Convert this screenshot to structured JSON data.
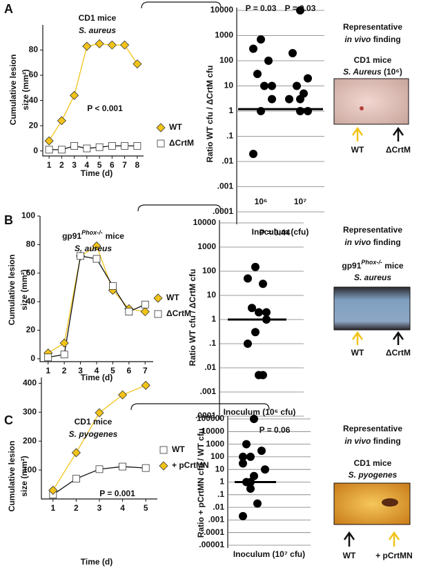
{
  "panels": [
    {
      "letter": "A",
      "caption": [
        "Representative",
        "in vivo",
        "finding"
      ],
      "photo_title": "CD1 mice",
      "photo_subtitle": "S. Aureus",
      "photo_subtitle_end": "(10⁶)",
      "arrow_labels": [
        "WT",
        "ΔCrtM"
      ]
    },
    {
      "letter": "B",
      "caption": [
        "Representative",
        "in vivo",
        "finding"
      ],
      "photo_title": "gp91",
      "photo_title_sup": "Phox-/-",
      "photo_title_end": "mice",
      "photo_subtitle": "S. aureus",
      "arrow_labels": [
        "WT",
        "ΔCrtM"
      ]
    },
    {
      "letter": "C",
      "caption": [
        "Representative",
        "in vivo",
        "finding"
      ],
      "photo_title": "CD1 mice",
      "photo_subtitle": "S. pyogenes",
      "arrow_labels": [
        "WT",
        "+ pCrtMN"
      ]
    }
  ],
  "chart_data": [
    {
      "type": "line",
      "title": "CD1 mice",
      "subtitle": "S. aureus",
      "ylabel": [
        "Cumulative lesion",
        "size (mm²)"
      ],
      "xlabel": "Time (d)",
      "annotation": "P < 0.001",
      "x": [
        1,
        2,
        3,
        4,
        5,
        6,
        7,
        8
      ],
      "xlim": [
        0.5,
        8.5
      ],
      "xticks": [
        1,
        2,
        3,
        4,
        5,
        6,
        7,
        8
      ],
      "ylim": [
        -4,
        100
      ],
      "yticks": [
        0,
        20,
        40,
        60,
        80
      ],
      "series": [
        {
          "name": "WT",
          "marker": "diamond",
          "color": "#f2c318",
          "line_color": "#f2c318",
          "values": [
            8,
            24,
            44,
            83,
            85,
            84,
            84,
            69
          ]
        },
        {
          "name": "ΔCrtM",
          "marker": "square",
          "color": "#ffffff",
          "line_color": "#111111",
          "values": [
            1,
            1,
            4,
            2,
            3,
            4,
            4,
            4
          ]
        }
      ]
    },
    {
      "type": "scatter",
      "log_scale": true,
      "ylabel": "Ratio WT cfu / ΔCrtM cfu",
      "xlabel": "Inoculum (cfu)",
      "annotations": [
        "P = 0.03",
        "P = 0.03"
      ],
      "categories": [
        "10⁶",
        "10⁷"
      ],
      "ylim": [
        0.0001,
        10000
      ],
      "yticks": [
        {
          "value": 0.0001,
          "label": ".0001"
        },
        {
          "value": 0.001,
          "label": ".001"
        },
        {
          "value": 0.01,
          "label": ".01"
        },
        {
          "value": 0.1,
          "label": ".1"
        },
        1,
        10,
        100,
        1000,
        10000
      ],
      "values": [
        [
          700,
          300,
          100,
          30,
          10,
          10,
          3,
          1,
          0.02
        ],
        [
          10000,
          200,
          20,
          10,
          5,
          3,
          3,
          1,
          1
        ]
      ],
      "median": 1.2,
      "color": "#000000"
    },
    {
      "type": "line",
      "title": "gp91",
      "title_sup": "Phox-/-",
      "title_end": "mice",
      "subtitle": "S. aureus",
      "ylabel": [
        "Cumulative lesion",
        "size (mm²)"
      ],
      "xlabel": "Time (d)",
      "x": [
        1,
        2,
        3,
        4,
        5,
        6,
        7
      ],
      "xlim": [
        0.5,
        7.5
      ],
      "xticks": [
        1,
        2,
        3,
        4,
        5,
        6,
        7
      ],
      "ylim": [
        -2,
        100
      ],
      "yticks": [
        0,
        20,
        40,
        60,
        80,
        100
      ],
      "series": [
        {
          "name": "WT",
          "marker": "diamond",
          "color": "#f2c318",
          "line_color": "#f2c318",
          "values": [
            4,
            11,
            72,
            79,
            48,
            35,
            33
          ]
        },
        {
          "name": "ΔCrtM",
          "marker": "square",
          "color": "#ffffff",
          "line_color": "#111111",
          "values": [
            1,
            3,
            72,
            70,
            51,
            33,
            38
          ]
        }
      ]
    },
    {
      "type": "scatter",
      "log_scale": true,
      "ylabel": "Ratio WT cfu / ΔCrtM cfu",
      "xlabel": "Inoculum (10⁶ cfu)",
      "annotations": [
        "P = 0.44"
      ],
      "categories": [
        null
      ],
      "ylim": [
        0.0001,
        10000
      ],
      "yticks": [
        {
          "value": 0.0001,
          "label": ".0001"
        },
        {
          "value": 0.001,
          "label": ".001"
        },
        {
          "value": 0.01,
          "label": ".01"
        },
        {
          "value": 0.1,
          "label": ".1"
        },
        1,
        10,
        100,
        1000,
        10000
      ],
      "values": [
        [
          150,
          50,
          30,
          3,
          2,
          2,
          1,
          0.3,
          0.1,
          0.005,
          0.005
        ]
      ],
      "median": 1,
      "color": "#000000"
    },
    {
      "type": "line",
      "title": "CD1 mice",
      "subtitle": "S. pyogenes",
      "ylabel": [
        "Cumulative lesion",
        "size (mm²)"
      ],
      "xlabel": "Time (d)",
      "annotation": "P = 0.001",
      "x": [
        1,
        2,
        3,
        4,
        5
      ],
      "xlim": [
        0.5,
        5.5
      ],
      "xticks": [
        1,
        2,
        3,
        4,
        5
      ],
      "ylim": [
        0,
        420
      ],
      "yticks": [
        100,
        200,
        300,
        400
      ],
      "series": [
        {
          "name": "WT",
          "marker": "square",
          "color": "#ffffff",
          "line_color": "#111111",
          "values": [
            15,
            70,
            103,
            112,
            107
          ]
        },
        {
          "name": "+ pCrtMN",
          "marker": "diamond",
          "color": "#f2c318",
          "line_color": "#f2c318",
          "values": [
            30,
            160,
            298,
            360,
            393
          ]
        }
      ]
    },
    {
      "type": "scatter",
      "log_scale": true,
      "ylabel": "Ratio + pCrtMN cfu / WT cfu",
      "xlabel": "Inoculum (10⁷ cfu)",
      "annotations": [
        "P = 0.06"
      ],
      "categories": [
        null
      ],
      "ylim": [
        1e-05,
        100000
      ],
      "yticks": [
        {
          "value": 1e-05,
          "label": ".00001"
        },
        {
          "value": 0.0001,
          "label": ".0001"
        },
        {
          "value": 0.001,
          "label": ".001"
        },
        {
          "value": 0.01,
          "label": ".01"
        },
        {
          "value": 0.1,
          "label": ".1"
        },
        1,
        10,
        100,
        1000,
        10000,
        100000
      ],
      "values": [
        [
          100000,
          1000,
          300,
          100,
          100,
          30,
          10,
          3,
          1,
          1,
          0.3,
          0.02,
          0.002
        ]
      ],
      "median": 1,
      "color": "#000000"
    }
  ]
}
